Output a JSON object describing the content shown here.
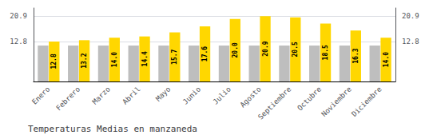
{
  "chart_data": {
    "type": "bar",
    "title": "Temperaturas Medias en manzaneda",
    "categories": [
      "Enero",
      "Febrero",
      "Marzo",
      "Abril",
      "Mayo",
      "Junio",
      "Julio",
      "Agosto",
      "Septiembre",
      "Octubre",
      "Noviembre",
      "Diciembre"
    ],
    "series": [
      {
        "color": "#BEBEBE",
        "values": [
          11.5,
          11.5,
          11.5,
          11.5,
          11.5,
          11.5,
          11.5,
          11.5,
          11.5,
          11.5,
          11.5,
          11.5
        ]
      },
      {
        "color": "#FFD700",
        "values": [
          12.8,
          13.2,
          14.0,
          14.4,
          15.7,
          17.6,
          20.0,
          20.9,
          20.5,
          18.5,
          16.3,
          14.0
        ],
        "value_labels": [
          "12.8",
          "13.2",
          "14.0",
          "14.4",
          "15.7",
          "17.6",
          "20.0",
          "20.9",
          "20.5",
          "18.5",
          "16.3",
          "14.0"
        ],
        "data_labels": true
      }
    ],
    "ylim": [
      0,
      23.5
    ],
    "yticks": [
      12.8,
      20.9
    ],
    "grid": true
  }
}
